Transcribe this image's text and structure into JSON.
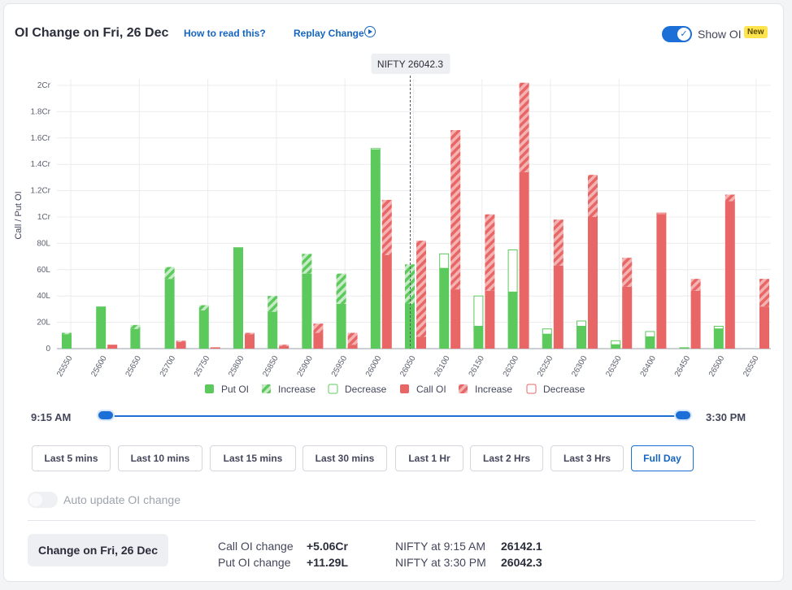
{
  "header": {
    "title": "OI Change on Fri, 26 Dec",
    "how_to_read": "How to read this?",
    "replay": "Replay Change",
    "show_oi": "Show OI",
    "new_badge": "New"
  },
  "colors": {
    "put": "#5cc95c",
    "call": "#e86666",
    "accent": "#1b6fd6"
  },
  "chart_data": {
    "type": "bar",
    "ylabel": "Call / Put OI",
    "ylim": [
      0,
      2.0
    ],
    "unit": "Cr",
    "y_ticks": [
      {
        "v": 0,
        "label": "0"
      },
      {
        "v": 0.2,
        "label": "20L"
      },
      {
        "v": 0.4,
        "label": "40L"
      },
      {
        "v": 0.6,
        "label": "60L"
      },
      {
        "v": 0.8,
        "label": "80L"
      },
      {
        "v": 1.0,
        "label": "1Cr"
      },
      {
        "v": 1.2,
        "label": "1.2Cr"
      },
      {
        "v": 1.4,
        "label": "1.4Cr"
      },
      {
        "v": 1.6,
        "label": "1.6Cr"
      },
      {
        "v": 1.8,
        "label": "1.8Cr"
      },
      {
        "v": 2.0,
        "label": "2Cr"
      }
    ],
    "categories": [
      "25550",
      "25600",
      "25650",
      "25700",
      "25750",
      "25800",
      "25850",
      "25900",
      "25950",
      "26000",
      "26050",
      "26100",
      "26150",
      "26200",
      "26250",
      "26300",
      "26350",
      "26400",
      "26450",
      "26500",
      "26550"
    ],
    "series": [
      {
        "name": "Put OI",
        "values": [
          0.11,
          0.32,
          0.15,
          0.53,
          0.29,
          0.77,
          0.28,
          0.57,
          0.34,
          1.51,
          0.34,
          0.61,
          0.17,
          0.43,
          0.11,
          0.17,
          0.03,
          0.09,
          0.01,
          0.15,
          0.0
        ]
      },
      {
        "name": "Put OI Increase",
        "values": [
          0.01,
          0.0,
          0.03,
          0.09,
          0.04,
          0.0,
          0.12,
          0.15,
          0.23,
          0.0,
          0.3,
          0.0,
          0.0,
          0.0,
          0.0,
          0.0,
          0.0,
          0.0,
          0.0,
          0.0,
          0.0
        ]
      },
      {
        "name": "Put OI Decrease",
        "values": [
          0.0,
          0.0,
          0.0,
          0.0,
          0.0,
          0.0,
          0.0,
          0.0,
          0.0,
          0.01,
          0.0,
          0.11,
          0.23,
          0.32,
          0.04,
          0.04,
          0.03,
          0.04,
          0.0,
          0.02,
          0.0
        ]
      },
      {
        "name": "Call OI",
        "values": [
          0.0,
          0.03,
          0.0,
          0.05,
          0.01,
          0.11,
          0.02,
          0.12,
          0.03,
          0.71,
          0.09,
          0.45,
          0.44,
          1.34,
          0.63,
          1.0,
          0.47,
          1.02,
          0.44,
          1.12,
          0.32
        ]
      },
      {
        "name": "Call OI Increase",
        "values": [
          0.0,
          0.0,
          0.0,
          0.01,
          0.0,
          0.01,
          0.01,
          0.07,
          0.09,
          0.42,
          0.73,
          1.21,
          0.58,
          0.68,
          0.35,
          0.32,
          0.22,
          0.0,
          0.09,
          0.05,
          0.21
        ]
      },
      {
        "name": "Call OI Decrease",
        "values": [
          0.0,
          0.0,
          0.0,
          0.0,
          0.0,
          0.0,
          0.0,
          0.0,
          0.0,
          0.0,
          0.0,
          0.0,
          0.0,
          0.0,
          0.0,
          0.0,
          0.0,
          0.01,
          0.0,
          0.0,
          0.0
        ]
      }
    ],
    "spot": {
      "label": "NIFTY 26042.3",
      "value": 26042.3
    },
    "legend": [
      "Put OI",
      "Increase",
      "Decrease",
      "Call OI",
      "Increase",
      "Decrease"
    ]
  },
  "range": {
    "start": "9:15 AM",
    "end": "3:30 PM"
  },
  "time_buttons": [
    "Last 5 mins",
    "Last 10 mins",
    "Last 15 mins",
    "Last 30 mins",
    "Last 1 Hr",
    "Last 2 Hrs",
    "Last 3 Hrs",
    "Full Day"
  ],
  "active_button": "Full Day",
  "auto_update": {
    "label": "Auto update OI change",
    "enabled": false
  },
  "footer": {
    "change_button": "Change on Fri, 26 Dec",
    "call_label": "Call OI change",
    "call_value": "+5.06Cr",
    "put_label": "Put OI change",
    "put_value": "+11.29L",
    "nifty_open_label": "NIFTY at 9:15 AM",
    "nifty_open_value": "26142.1",
    "nifty_close_label": "NIFTY at 3:30 PM",
    "nifty_close_value": "26042.3"
  }
}
